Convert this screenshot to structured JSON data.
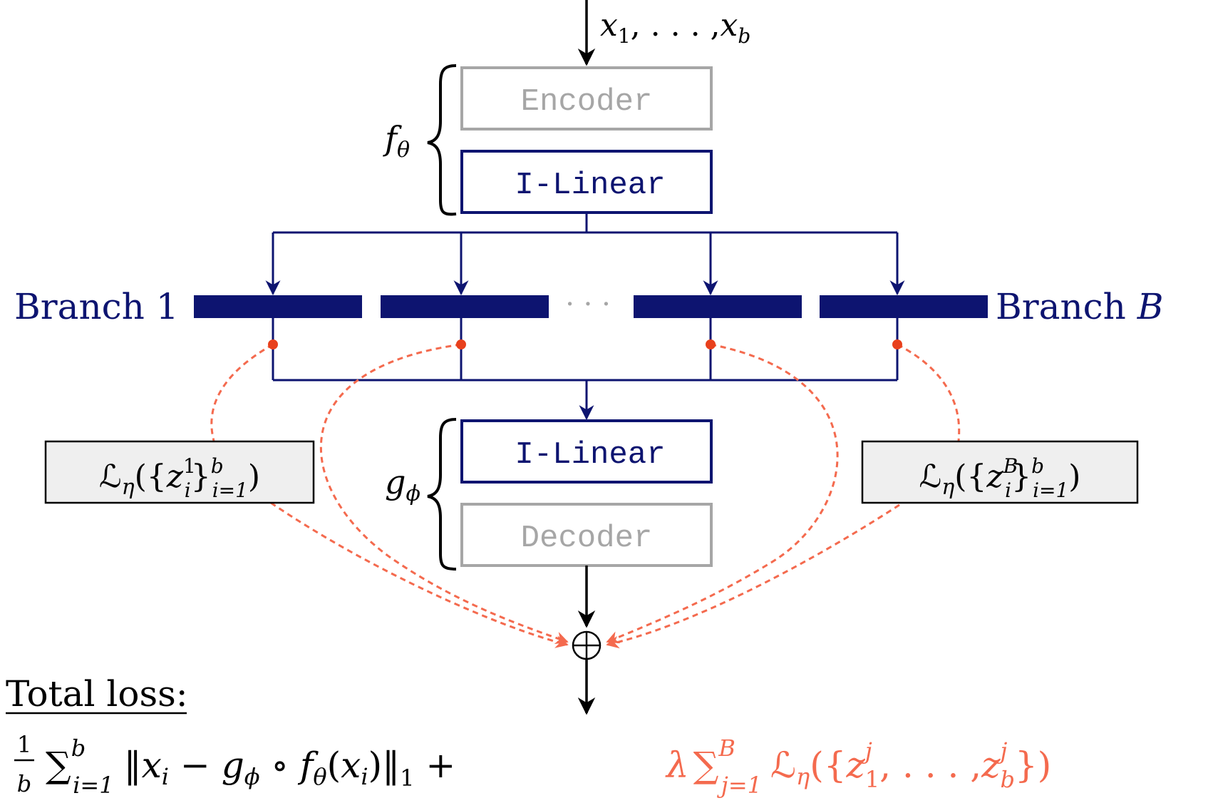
{
  "colors": {
    "navy": "#0d1470",
    "gray": "#a6a6a6",
    "coral": "#f46a4e",
    "dot": "#e8401c",
    "black": "#000000",
    "loss_box_fill": "#efefef"
  },
  "input": {
    "x_sym": "x",
    "first_sub": "1",
    "ellipsis": ", . . . ,",
    "last_sub": "b"
  },
  "f_theta": {
    "letter": "f",
    "sub": "θ"
  },
  "g_phi": {
    "letter": "g",
    "sub": "ϕ"
  },
  "encoder_label": "Encoder",
  "ilinear_top_label": "I-Linear",
  "ilinear_bottom_label": "I-Linear",
  "decoder_label": "Decoder",
  "branch_left": {
    "text": "Branch 1"
  },
  "branch_right": {
    "text": "Branch ",
    "sym": "B"
  },
  "branch_dots": "· · ·",
  "loss_left": {
    "L": "ℒ",
    "eta": "η",
    "open": "({",
    "z": "z",
    "sup": "1",
    "sub": "i",
    "close": "}",
    "outer_sup": "b",
    "outer_sub": "i=1",
    "end": ")"
  },
  "loss_right": {
    "L": "ℒ",
    "eta": "η",
    "open": "({",
    "z": "z",
    "sup": "B",
    "sub": "i",
    "close": "}",
    "outer_sup": "b",
    "outer_sub": "i=1",
    "end": ")"
  },
  "sum_symbol": "⊕",
  "total_loss_label": "Total loss:",
  "formula": {
    "frac_num": "1",
    "frac_den": "b",
    "sigma": "∑",
    "sum1_sup": "b",
    "sum1_sub": "i=1",
    "norm_body_a": "‖",
    "x": "x",
    "i": "i",
    "minus": " − ",
    "g": "g",
    "phi": "ϕ",
    "compose": " ∘ ",
    "f": "f",
    "theta": "θ",
    "paren_open": "(",
    "paren_close": ")",
    "norm_close": "‖",
    "norm_sub": "1",
    "plus": " + ",
    "lambda": "λ",
    "sum2_sup": "B",
    "sum2_sub": "j=1",
    "L": "ℒ",
    "eta": "η",
    "set_open": "({",
    "z": "z",
    "z1_sup": "j",
    "z1_sub": "1",
    "comma_dots": ", . . . ,",
    "zb_sup": "j",
    "zb_sub": "b",
    "set_close": "})"
  }
}
